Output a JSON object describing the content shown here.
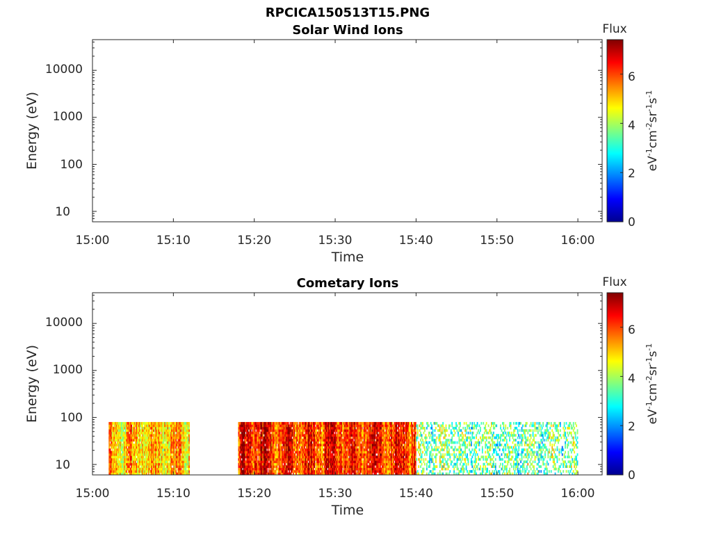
{
  "figure_title": "RPCICA150513T15.PNG",
  "colors": {
    "axis": "#262626",
    "background": "#ffffff",
    "colormap": [
      "#00008f",
      "#0000ff",
      "#0080ff",
      "#00ffff",
      "#80ff80",
      "#ffff00",
      "#ff8000",
      "#ff0000",
      "#800000"
    ]
  },
  "chart_data": [
    {
      "type": "heatmap",
      "title": "Solar Wind Ions",
      "xlabel": "Time",
      "ylabel": "Energy (eV)",
      "yscale": "log",
      "xlim": [
        "15:00",
        "16:03"
      ],
      "ylim": [
        6,
        45000
      ],
      "xticks": [
        "15:00",
        "15:10",
        "15:20",
        "15:30",
        "15:40",
        "15:50",
        "16:00"
      ],
      "yticks": [
        "10",
        "100",
        "1000",
        "10000"
      ],
      "colorbar": {
        "title": "Flux",
        "label": "eV-1cm-2sr-1s-1",
        "ticks": [
          "0",
          "2",
          "4",
          "6"
        ],
        "range": [
          0,
          7.4
        ]
      },
      "segments": []
    },
    {
      "type": "heatmap",
      "title": "Cometary Ions",
      "xlabel": "Time",
      "ylabel": "Energy (eV)",
      "yscale": "log",
      "xlim": [
        "15:00",
        "16:03"
      ],
      "ylim": [
        6,
        45000
      ],
      "xticks": [
        "15:00",
        "15:10",
        "15:20",
        "15:30",
        "15:40",
        "15:50",
        "16:00"
      ],
      "yticks": [
        "10",
        "100",
        "1000",
        "10000"
      ],
      "colorbar": {
        "title": "Flux",
        "label": "eV-1cm-2sr-1s-1",
        "ticks": [
          "0",
          "2",
          "4",
          "6"
        ],
        "range": [
          0,
          7.4
        ]
      },
      "energy_range": [
        6,
        80
      ],
      "segments": [
        {
          "start": "15:02",
          "end": "15:12",
          "flux_level": 5.0
        },
        {
          "start": "15:18",
          "end": "15:40",
          "flux_level": 6.2
        },
        {
          "start": "15:40",
          "end": "16:00",
          "flux_level": 3.6
        }
      ]
    }
  ]
}
